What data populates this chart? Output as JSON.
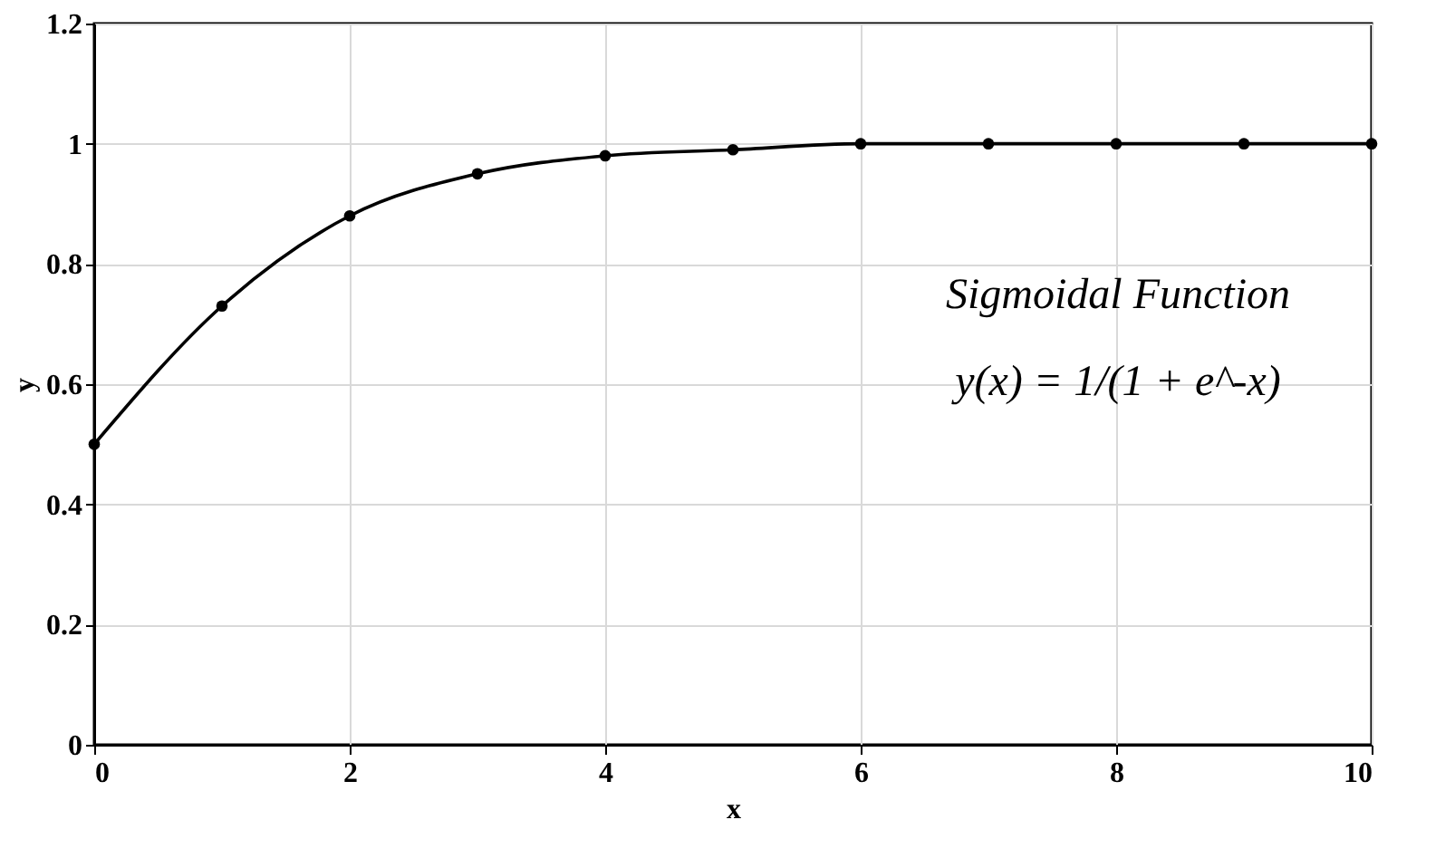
{
  "chart_data": {
    "type": "line",
    "xlabel": "x",
    "ylabel": "y",
    "x": [
      0,
      1,
      2,
      3,
      4,
      5,
      6,
      7,
      8,
      9,
      10
    ],
    "series": [
      {
        "color": "#000000",
        "values": [
          0.5,
          0.73,
          0.88,
          0.95,
          0.98,
          0.99,
          1,
          1,
          1,
          1,
          1
        ]
      }
    ],
    "xlim": [
      0,
      10
    ],
    "xticks": [
      0,
      2,
      4,
      6,
      8,
      10
    ],
    "ylim": [
      0,
      1.2
    ],
    "yticks": [
      0,
      0.2,
      0.4,
      0.6,
      0.8,
      1,
      1.2
    ],
    "grid": true,
    "marker": "circle",
    "line_style": "solid",
    "annotations": [
      "Sigmoidal Function",
      "y(x) = 1/(1 + e^-x)"
    ]
  }
}
